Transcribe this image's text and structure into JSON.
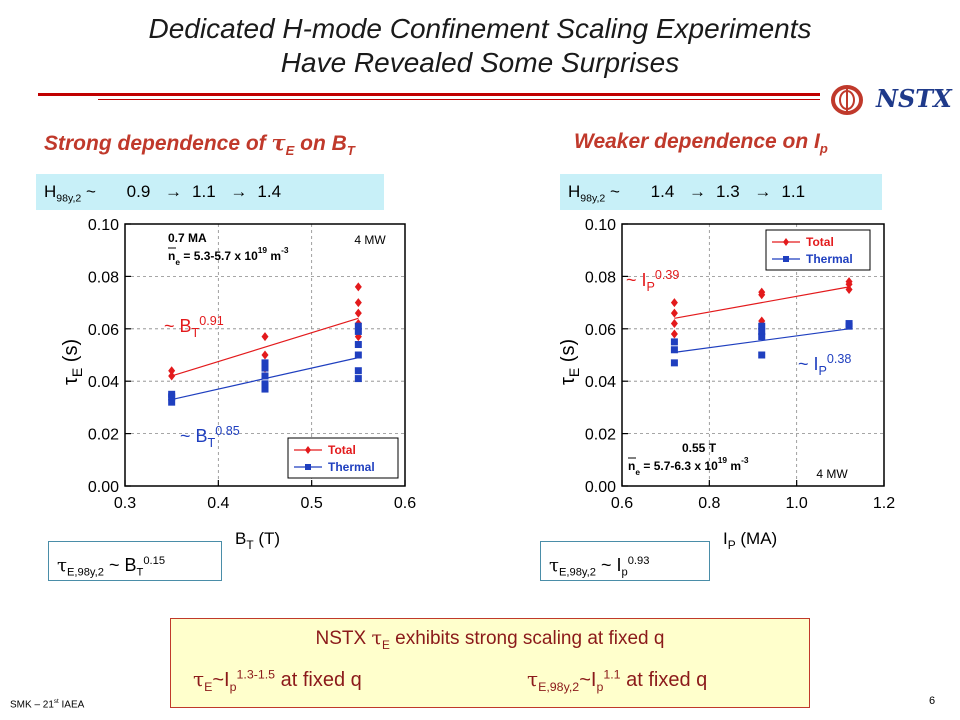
{
  "slide": {
    "title_line1": "Dedicated H-mode Confinement Scaling Experiments",
    "title_line2": "Have Revealed Some Surprises",
    "logo_text": "NSTX",
    "footer": "SMK – 21",
    "footer_sup": "st",
    "footer_tail": " IAEA",
    "page_number": "6"
  },
  "left": {
    "heading_pre": "Strong dependence of ",
    "heading_tau": "τ",
    "heading_sub": "E",
    "heading_mid": " on B",
    "heading_sub2": "T",
    "hbox_label": "H",
    "hbox_sub": "98y,2",
    "hbox_tilde": " ~",
    "hbox_v1": "0.9",
    "hbox_v2": "1.1",
    "hbox_v3": "1.4",
    "arrow": "→",
    "scaling_tau": "τ",
    "scaling_sub": "E,98y,2",
    "scaling_mid": " ~ B",
    "scaling_sub2": "T",
    "scaling_exp": "0.15"
  },
  "right": {
    "heading": "Weaker dependence on I",
    "heading_sub": "p",
    "hbox_label": "H",
    "hbox_sub": "98y,2",
    "hbox_tilde": " ~",
    "hbox_v1": "1.4",
    "hbox_v2": "1.3",
    "hbox_v3": "1.1",
    "arrow": "→",
    "scaling_tau": "τ",
    "scaling_sub": "E,98y,2",
    "scaling_mid": " ~ I",
    "scaling_sub2": "p",
    "scaling_exp": "0.93"
  },
  "summary": {
    "line1_pre": "NSTX ",
    "line1_tau": "τ",
    "line1_sub": "E",
    "line1_post": " exhibits strong scaling at fixed q",
    "l2a_tau": "τ",
    "l2a_sub": "E",
    "l2a_mid": "~I",
    "l2a_sub2": "p",
    "l2a_exp": "1.3-1.5",
    "l2a_post": " at fixed q",
    "l2b_tau": "τ",
    "l2b_sub": "E,98y,2",
    "l2b_mid": "~I",
    "l2b_sub2": "p",
    "l2b_exp": "1.1",
    "l2b_post": " at fixed q"
  },
  "colors": {
    "total": "#e31a1c",
    "thermal": "#1f3fbf",
    "heading": "#c0392b",
    "box": "#c8f0f8"
  },
  "chart_data": [
    {
      "type": "scatter",
      "xlabel": "B",
      "xlabel_sub": "T",
      "xlabel_unit": " (T)",
      "ylabel": "τ",
      "ylabel_sub": "E",
      "ylabel_unit": " (s)",
      "xlim": [
        0.3,
        0.6
      ],
      "ylim": [
        0.0,
        0.1
      ],
      "xticks": [
        "0.3",
        "0.4",
        "0.5",
        "0.6"
      ],
      "yticks": [
        "0.00",
        "0.02",
        "0.04",
        "0.06",
        "0.08",
        "0.10"
      ],
      "grid": "dashed",
      "legend_placement": "bottom-right",
      "annotations": {
        "current": "0.7 MA",
        "density_pre": "n",
        "density_sub": "e",
        "density_mid": " = 5.3-5.7 x 10",
        "density_exp": "19",
        "density_unit": " m",
        "density_unit_exp": "-3",
        "power": "4 MW",
        "fit_total_pre": "~ B",
        "fit_total_sub": "T",
        "fit_total_exp": "0.91",
        "fit_thermal_pre": "~ B",
        "fit_thermal_sub": "T",
        "fit_thermal_exp": "0.85"
      },
      "series": [
        {
          "name": "Total",
          "marker": "diamond",
          "color": "#e31a1c",
          "points": [
            [
              0.35,
              0.042
            ],
            [
              0.35,
              0.044
            ],
            [
              0.45,
              0.045
            ],
            [
              0.45,
              0.05
            ],
            [
              0.45,
              0.057
            ],
            [
              0.55,
              0.057
            ],
            [
              0.55,
              0.062
            ],
            [
              0.55,
              0.066
            ],
            [
              0.55,
              0.07
            ],
            [
              0.55,
              0.076
            ]
          ],
          "fit": [
            [
              0.35,
              0.042
            ],
            [
              0.55,
              0.064
            ]
          ]
        },
        {
          "name": "Thermal",
          "marker": "square",
          "color": "#1f3fbf",
          "points": [
            [
              0.35,
              0.032
            ],
            [
              0.35,
              0.034
            ],
            [
              0.35,
              0.035
            ],
            [
              0.45,
              0.037
            ],
            [
              0.45,
              0.039
            ],
            [
              0.45,
              0.042
            ],
            [
              0.45,
              0.045
            ],
            [
              0.45,
              0.047
            ],
            [
              0.55,
              0.041
            ],
            [
              0.55,
              0.044
            ],
            [
              0.55,
              0.05
            ],
            [
              0.55,
              0.054
            ],
            [
              0.55,
              0.059
            ],
            [
              0.55,
              0.061
            ]
          ],
          "fit": [
            [
              0.35,
              0.033
            ],
            [
              0.55,
              0.049
            ]
          ]
        }
      ]
    },
    {
      "type": "scatter",
      "xlabel": "I",
      "xlabel_sub": "P",
      "xlabel_unit": " (MA)",
      "ylabel": "τ",
      "ylabel_sub": "E",
      "ylabel_unit": " (s)",
      "xlim": [
        0.6,
        1.2
      ],
      "ylim": [
        0.0,
        0.1
      ],
      "xticks": [
        "0.6",
        "0.8",
        "1.0",
        "1.2"
      ],
      "yticks": [
        "0.00",
        "0.02",
        "0.04",
        "0.06",
        "0.08",
        "0.10"
      ],
      "grid": "dashed",
      "legend_placement": "top-right",
      "annotations": {
        "current": "0.55 T",
        "density_pre": "n",
        "density_sub": "e",
        "density_mid": " = 5.7-6.3 x 10",
        "density_exp": "19",
        "density_unit": " m",
        "density_unit_exp": "-3",
        "power": "4 MW",
        "fit_total_pre": "~ I",
        "fit_total_sub": "P",
        "fit_total_exp": "0.39",
        "fit_thermal_pre": "~ I",
        "fit_thermal_sub": "P",
        "fit_thermal_exp": "0.38"
      },
      "series": [
        {
          "name": "Total",
          "marker": "diamond",
          "color": "#e31a1c",
          "points": [
            [
              0.72,
              0.058
            ],
            [
              0.72,
              0.062
            ],
            [
              0.72,
              0.066
            ],
            [
              0.72,
              0.07
            ],
            [
              0.92,
              0.063
            ],
            [
              0.92,
              0.073
            ],
            [
              0.92,
              0.074
            ],
            [
              1.12,
              0.075
            ],
            [
              1.12,
              0.077
            ],
            [
              1.12,
              0.078
            ]
          ],
          "fit": [
            [
              0.72,
              0.064
            ],
            [
              1.12,
              0.076
            ]
          ]
        },
        {
          "name": "Thermal",
          "marker": "square",
          "color": "#1f3fbf",
          "points": [
            [
              0.72,
              0.047
            ],
            [
              0.72,
              0.052
            ],
            [
              0.72,
              0.055
            ],
            [
              0.92,
              0.05
            ],
            [
              0.92,
              0.057
            ],
            [
              0.92,
              0.059
            ],
            [
              0.92,
              0.061
            ],
            [
              1.12,
              0.061
            ],
            [
              1.12,
              0.062
            ]
          ],
          "fit": [
            [
              0.72,
              0.051
            ],
            [
              1.12,
              0.06
            ]
          ]
        }
      ]
    }
  ]
}
